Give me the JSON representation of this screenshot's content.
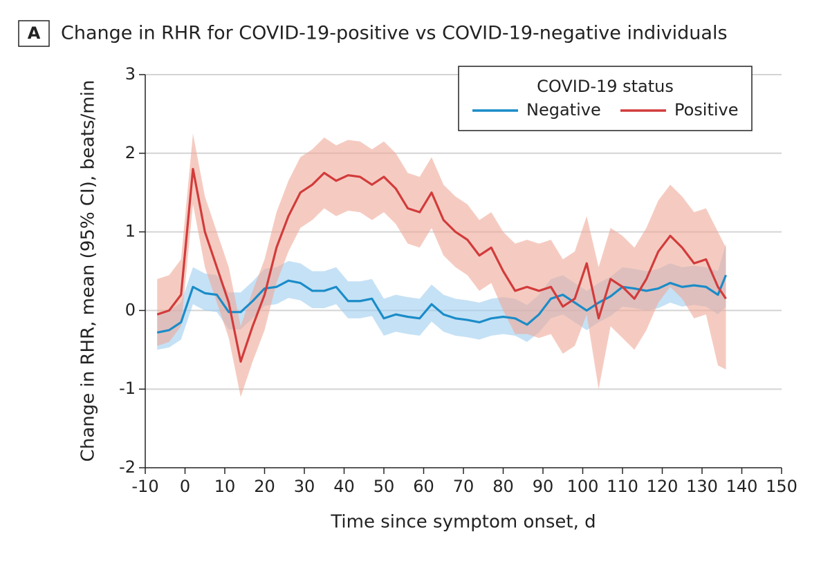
{
  "chart_data": {
    "type": "line",
    "panel_label": "A",
    "title": "Change in RHR for COVID-19-positive vs COVID-19-negative individuals",
    "xlabel": "Time since symptom onset, d",
    "ylabel": "Change in RHR, mean (95% CI), beats/min",
    "legend_title": "COVID-19 status",
    "legend_position": "upper right",
    "grid": true,
    "xlim": [
      -10,
      150
    ],
    "xticks": [
      -10,
      0,
      10,
      20,
      30,
      40,
      50,
      60,
      70,
      80,
      90,
      100,
      110,
      120,
      130,
      140,
      150
    ],
    "ylim": [
      -2,
      3
    ],
    "yticks": [
      -2,
      -1,
      0,
      1,
      2,
      3
    ],
    "x": [
      -7,
      -4,
      -1,
      2,
      5,
      8,
      11,
      14,
      17,
      20,
      23,
      26,
      29,
      32,
      35,
      38,
      41,
      44,
      47,
      50,
      53,
      56,
      59,
      62,
      65,
      68,
      71,
      74,
      77,
      80,
      83,
      86,
      89,
      92,
      95,
      98,
      101,
      104,
      107,
      110,
      113,
      116,
      119,
      122,
      125,
      128,
      131,
      134,
      136
    ],
    "series": [
      {
        "name": "Negative",
        "color": "#1a8cc8",
        "band_color": "#9fcdee",
        "values": [
          -0.28,
          -0.25,
          -0.15,
          0.3,
          0.22,
          0.2,
          -0.02,
          -0.02,
          0.12,
          0.28,
          0.3,
          0.38,
          0.35,
          0.25,
          0.25,
          0.3,
          0.12,
          0.12,
          0.15,
          -0.1,
          -0.05,
          -0.08,
          -0.1,
          0.08,
          -0.05,
          -0.1,
          -0.12,
          -0.15,
          -0.1,
          -0.08,
          -0.1,
          -0.18,
          -0.05,
          0.15,
          0.2,
          0.1,
          0.0,
          0.1,
          0.18,
          0.3,
          0.28,
          0.25,
          0.28,
          0.35,
          0.3,
          0.32,
          0.3,
          0.2,
          0.45
        ],
        "lower": [
          -0.5,
          -0.47,
          -0.37,
          0.08,
          0.0,
          -0.02,
          -0.24,
          -0.24,
          -0.1,
          0.06,
          0.08,
          0.16,
          0.13,
          0.03,
          0.03,
          0.08,
          -0.1,
          -0.1,
          -0.07,
          -0.32,
          -0.27,
          -0.3,
          -0.32,
          -0.14,
          -0.27,
          -0.32,
          -0.34,
          -0.37,
          -0.32,
          -0.3,
          -0.32,
          -0.4,
          -0.28,
          -0.1,
          -0.05,
          -0.15,
          -0.25,
          -0.15,
          -0.07,
          0.05,
          0.03,
          0.0,
          0.03,
          0.1,
          0.05,
          0.07,
          0.05,
          -0.05,
          0.05
        ],
        "upper": [
          -0.03,
          0.0,
          0.1,
          0.55,
          0.47,
          0.45,
          0.23,
          0.23,
          0.37,
          0.53,
          0.55,
          0.63,
          0.6,
          0.5,
          0.5,
          0.55,
          0.37,
          0.37,
          0.4,
          0.15,
          0.2,
          0.17,
          0.15,
          0.33,
          0.2,
          0.15,
          0.13,
          0.1,
          0.15,
          0.17,
          0.15,
          0.07,
          0.2,
          0.4,
          0.45,
          0.35,
          0.25,
          0.35,
          0.43,
          0.55,
          0.53,
          0.5,
          0.53,
          0.6,
          0.55,
          0.57,
          0.55,
          0.5,
          0.85
        ]
      },
      {
        "name": "Positive",
        "color": "#d23b3b",
        "band_color": "#eea898",
        "values": [
          -0.05,
          0.0,
          0.2,
          1.8,
          1.0,
          0.55,
          0.1,
          -0.65,
          -0.2,
          0.2,
          0.8,
          1.2,
          1.5,
          1.6,
          1.75,
          1.65,
          1.72,
          1.7,
          1.6,
          1.7,
          1.55,
          1.3,
          1.25,
          1.5,
          1.15,
          1.0,
          0.9,
          0.7,
          0.8,
          0.5,
          0.25,
          0.3,
          0.25,
          0.3,
          0.05,
          0.15,
          0.6,
          -0.1,
          0.4,
          0.3,
          0.15,
          0.4,
          0.75,
          0.95,
          0.8,
          0.6,
          0.65,
          0.3,
          0.15
        ],
        "lower": [
          -0.45,
          -0.4,
          -0.2,
          1.35,
          0.55,
          0.1,
          -0.35,
          -1.1,
          -0.65,
          -0.25,
          0.35,
          0.75,
          1.05,
          1.15,
          1.3,
          1.2,
          1.27,
          1.25,
          1.15,
          1.25,
          1.1,
          0.85,
          0.8,
          1.05,
          0.7,
          0.55,
          0.45,
          0.25,
          0.35,
          0.0,
          -0.3,
          -0.3,
          -0.35,
          -0.3,
          -0.55,
          -0.45,
          -0.05,
          -1.0,
          -0.2,
          -0.35,
          -0.5,
          -0.25,
          0.1,
          0.3,
          0.15,
          -0.1,
          -0.05,
          -0.7,
          -0.75
        ],
        "upper": [
          0.4,
          0.45,
          0.65,
          2.25,
          1.45,
          1.0,
          0.55,
          -0.2,
          0.25,
          0.65,
          1.25,
          1.65,
          1.95,
          2.05,
          2.2,
          2.1,
          2.17,
          2.15,
          2.05,
          2.15,
          2.0,
          1.75,
          1.7,
          1.95,
          1.6,
          1.45,
          1.35,
          1.15,
          1.25,
          1.0,
          0.85,
          0.9,
          0.85,
          0.9,
          0.65,
          0.75,
          1.2,
          0.55,
          1.05,
          0.95,
          0.8,
          1.05,
          1.4,
          1.6,
          1.45,
          1.25,
          1.3,
          1.0,
          0.8
        ]
      }
    ]
  }
}
